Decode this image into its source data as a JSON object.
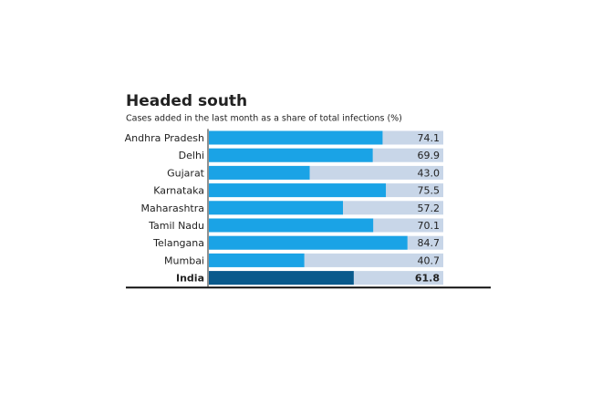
{
  "chart_data": {
    "type": "bar",
    "orientation": "horizontal",
    "title": "Headed south",
    "subtitle": "Cases added in the last month as a share of total infections (%)",
    "categories": [
      "Andhra Pradesh",
      "Delhi",
      "Gujarat",
      "Karnataka",
      "Maharashtra",
      "Tamil Nadu",
      "Telangana",
      "Mumbai",
      "India"
    ],
    "values": [
      74.1,
      69.9,
      43.0,
      75.5,
      57.2,
      70.1,
      84.7,
      40.7,
      61.8
    ],
    "value_labels": [
      "74.1",
      "69.9",
      "43.0",
      "75.5",
      "57.2",
      "70.1",
      "84.7",
      "40.7",
      "61.8"
    ],
    "colors": [
      "#1aa3e6",
      "#1aa3e6",
      "#1aa3e6",
      "#1aa3e6",
      "#1aa3e6",
      "#1aa3e6",
      "#1aa3e6",
      "#1aa3e6",
      "#0a5a8c"
    ],
    "bold": [
      false,
      false,
      false,
      false,
      false,
      false,
      false,
      false,
      true
    ],
    "track_color": "#c8d6e8",
    "xlim": [
      0,
      100
    ]
  }
}
